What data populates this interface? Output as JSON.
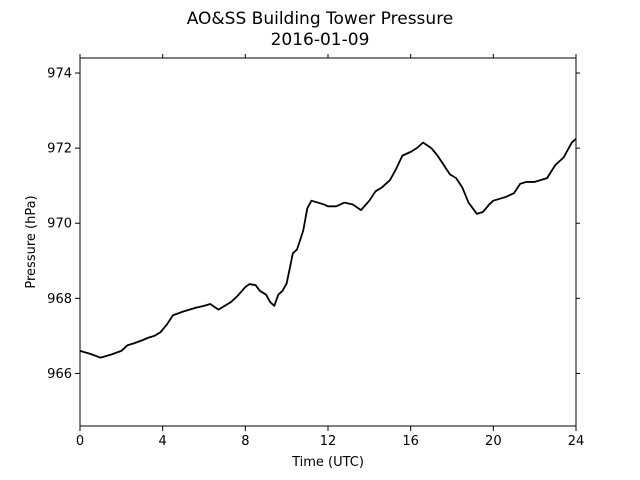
{
  "chart_data": {
    "type": "line",
    "title": "AO&SS Building Tower Pressure",
    "subtitle": "2016-01-09",
    "xlabel": "Time (UTC)",
    "ylabel": "Pressure (hPa)",
    "xlim": [
      0,
      24
    ],
    "ylim": [
      964.6,
      974.4
    ],
    "xticks": [
      0,
      4,
      8,
      12,
      16,
      20,
      24
    ],
    "yticks": [
      966,
      968,
      970,
      972,
      974
    ],
    "grid": false,
    "line_color": "#000000",
    "series": [
      {
        "x": [
          0,
          0.5,
          1.0,
          1.5,
          2.0,
          2.3,
          2.6,
          3.0,
          3.3,
          3.6,
          3.9,
          4.2,
          4.5,
          5.0,
          5.3,
          5.6,
          6.0,
          6.3,
          6.7,
          7.0,
          7.3,
          7.6,
          8.0,
          8.2,
          8.5,
          8.7,
          9.0,
          9.2,
          9.4,
          9.6,
          9.8,
          10.0,
          10.3,
          10.5,
          10.8,
          11.0,
          11.2,
          11.5,
          11.8,
          12.0,
          12.4,
          12.8,
          13.2,
          13.6,
          14.0,
          14.3,
          14.6,
          15.0,
          15.3,
          15.6,
          16.0,
          16.3,
          16.6,
          17.0,
          17.3,
          17.6,
          17.9,
          18.2,
          18.5,
          18.8,
          19.0,
          19.2,
          19.5,
          19.8,
          20.0,
          20.3,
          20.6,
          21.0,
          21.3,
          21.6,
          22.0,
          22.3,
          22.6,
          23.0,
          23.4,
          23.8,
          24.0
        ],
        "y": [
          966.6,
          966.52,
          966.42,
          966.5,
          966.6,
          966.75,
          966.8,
          966.88,
          966.95,
          967.0,
          967.1,
          967.3,
          967.55,
          967.65,
          967.7,
          967.75,
          967.8,
          967.85,
          967.7,
          967.8,
          967.9,
          968.05,
          968.3,
          968.38,
          968.35,
          968.2,
          968.1,
          967.9,
          967.8,
          968.1,
          968.2,
          968.4,
          969.2,
          969.3,
          969.8,
          970.4,
          970.6,
          970.55,
          970.5,
          970.45,
          970.45,
          970.55,
          970.5,
          970.35,
          970.6,
          970.85,
          970.95,
          971.15,
          971.45,
          971.8,
          971.9,
          972.0,
          972.15,
          972.0,
          971.8,
          971.55,
          971.3,
          971.2,
          970.95,
          970.55,
          970.4,
          970.25,
          970.3,
          970.5,
          970.6,
          970.65,
          970.7,
          970.8,
          971.05,
          971.1,
          971.1,
          971.15,
          971.2,
          971.55,
          971.75,
          972.15,
          972.25
        ]
      }
    ]
  }
}
